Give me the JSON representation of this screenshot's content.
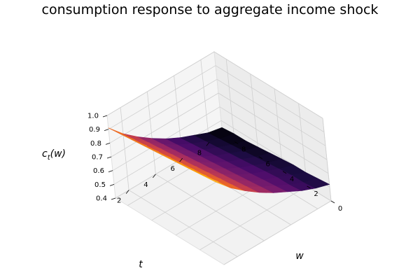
{
  "chart_data": {
    "type": "surface3d",
    "title": "consumption response to aggregate income shock",
    "xlabel": "w",
    "ylabel": "t",
    "zlabel": "c_t(w)",
    "zlabel_main": "c",
    "zlabel_sub": "t",
    "zlabel_rest": "(w)",
    "w_range": [
      0,
      9
    ],
    "t_range": [
      1,
      9
    ],
    "z_range": [
      0.4,
      1.0
    ],
    "w_ticks": [
      "0",
      "2",
      "4",
      "6",
      "8"
    ],
    "t_ticks": [
      "2",
      "4",
      "6",
      "8"
    ],
    "z_ticks": [
      "0.4",
      "0.5",
      "0.6",
      "0.7",
      "0.8",
      "0.9",
      "1.0"
    ],
    "w_values": [
      0,
      1,
      2,
      3,
      4,
      5,
      6,
      7,
      8,
      9
    ],
    "t_values": [
      1,
      2,
      3,
      4,
      5,
      6,
      7,
      8,
      9
    ],
    "values": [
      [
        1.0,
        0.9,
        0.82,
        0.75,
        0.69,
        0.64,
        0.59,
        0.55,
        0.52
      ],
      [
        0.99,
        0.89,
        0.81,
        0.74,
        0.68,
        0.63,
        0.58,
        0.54,
        0.51
      ],
      [
        0.98,
        0.88,
        0.8,
        0.73,
        0.67,
        0.62,
        0.58,
        0.54,
        0.5
      ],
      [
        0.97,
        0.87,
        0.79,
        0.72,
        0.66,
        0.61,
        0.57,
        0.53,
        0.5
      ],
      [
        0.96,
        0.86,
        0.78,
        0.71,
        0.65,
        0.6,
        0.56,
        0.52,
        0.49
      ],
      [
        0.95,
        0.85,
        0.77,
        0.7,
        0.64,
        0.59,
        0.55,
        0.51,
        0.48
      ],
      [
        0.94,
        0.84,
        0.76,
        0.69,
        0.63,
        0.58,
        0.54,
        0.5,
        0.47
      ],
      [
        0.93,
        0.83,
        0.75,
        0.68,
        0.62,
        0.57,
        0.53,
        0.49,
        0.46
      ],
      [
        0.92,
        0.82,
        0.74,
        0.67,
        0.61,
        0.56,
        0.52,
        0.48,
        0.46
      ],
      [
        0.91,
        0.81,
        0.73,
        0.66,
        0.6,
        0.55,
        0.51,
        0.47,
        0.45
      ]
    ],
    "colormap": "inferno",
    "grid": true
  }
}
